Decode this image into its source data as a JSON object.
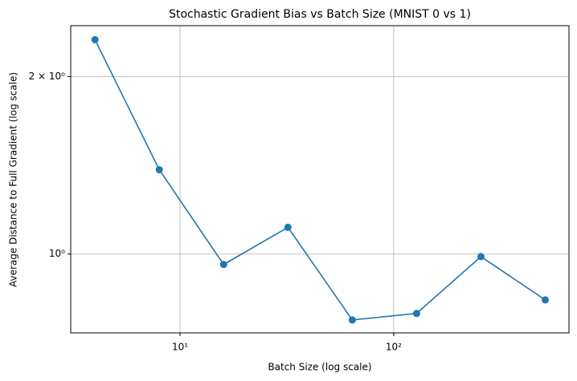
{
  "chart_data": {
    "type": "line",
    "title": "Stochastic Gradient Bias vs Batch Size (MNIST 0 vs 1)",
    "xlabel": "Batch Size (log scale)",
    "ylabel": "Average Distance to Full Gradient (log scale)",
    "x": [
      4,
      8,
      16,
      32,
      64,
      128,
      256,
      512
    ],
    "series": [
      {
        "name": "bias",
        "color": "#1f77b4",
        "values": [
          2.31,
          1.39,
          0.96,
          1.11,
          0.773,
          0.793,
          0.99,
          0.836
        ]
      }
    ],
    "xscale": "log",
    "yscale": "log",
    "xlim": [
      3.08,
      661
    ],
    "ylim": [
      0.735,
      2.44
    ],
    "xticks": [
      {
        "value": 10,
        "label": "10¹"
      },
      {
        "value": 100,
        "label": "10²"
      }
    ],
    "yticks": [
      {
        "value": 1,
        "label": "10⁰"
      },
      {
        "value": 2,
        "label": "2 × 10⁰"
      }
    ],
    "grid": true
  }
}
